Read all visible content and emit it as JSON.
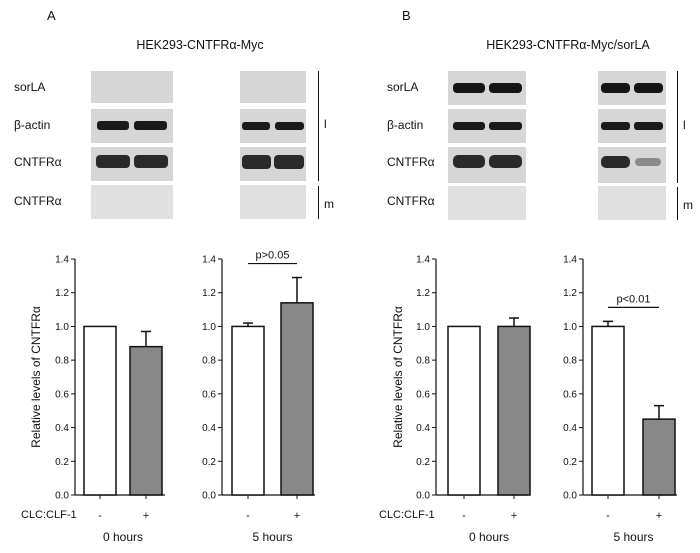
{
  "panels": [
    {
      "letter": "A",
      "cell_line": "HEK293-CNTFRα-Myc",
      "blot_labels": [
        "sorLA",
        "β-actin",
        "CNTFRα",
        "CNTFRα"
      ],
      "bracket_labels": [
        "l",
        "m"
      ]
    },
    {
      "letter": "B",
      "cell_line": "HEK293-CNTFRα-Myc/sorLA",
      "blot_labels": [
        "sorLA",
        "β-actin",
        "CNTFRα",
        "CNTFRα"
      ],
      "bracket_labels": [
        "l",
        "m"
      ]
    }
  ],
  "treatment_label": "CLC:CLF-1",
  "chart_data": [
    {
      "type": "bar",
      "panel": "A",
      "title": "0 hours",
      "ylabel": "Relative levels of CNTFRα",
      "categories": [
        "-",
        "+"
      ],
      "values": [
        1.0,
        0.88
      ],
      "errors": [
        0.0,
        0.09
      ],
      "fill": [
        "#ffffff",
        "#888888"
      ],
      "ylim": [
        0,
        1.4
      ],
      "yticks": [
        "0.0",
        "0.2",
        "0.4",
        "0.6",
        "0.8",
        "1.0",
        "1.2",
        "1.4"
      ],
      "annotation": ""
    },
    {
      "type": "bar",
      "panel": "A",
      "title": "5 hours",
      "ylabel": "",
      "categories": [
        "-",
        "+"
      ],
      "values": [
        1.0,
        1.14
      ],
      "errors": [
        0.02,
        0.15
      ],
      "fill": [
        "#ffffff",
        "#888888"
      ],
      "ylim": [
        0,
        1.4
      ],
      "yticks": [
        "0.0",
        "0.2",
        "0.4",
        "0.6",
        "0.8",
        "1.0",
        "1.2",
        "1.4"
      ],
      "annotation": "p>0.05"
    },
    {
      "type": "bar",
      "panel": "B",
      "title": "0 hours",
      "ylabel": "Relative levels of CNTFRα",
      "categories": [
        "-",
        "+"
      ],
      "values": [
        1.0,
        1.0
      ],
      "errors": [
        0.0,
        0.05
      ],
      "fill": [
        "#ffffff",
        "#888888"
      ],
      "ylim": [
        0,
        1.4
      ],
      "yticks": [
        "0.0",
        "0.2",
        "0.4",
        "0.6",
        "0.8",
        "1.0",
        "1.2",
        "1.4"
      ],
      "annotation": ""
    },
    {
      "type": "bar",
      "panel": "B",
      "title": "5 hours",
      "ylabel": "",
      "categories": [
        "-",
        "+"
      ],
      "values": [
        1.0,
        0.45
      ],
      "errors": [
        0.03,
        0.08
      ],
      "fill": [
        "#ffffff",
        "#888888"
      ],
      "ylim": [
        0,
        1.4
      ],
      "yticks": [
        "0.0",
        "0.2",
        "0.4",
        "0.6",
        "0.8",
        "1.0",
        "1.2",
        "1.4"
      ],
      "annotation": "p<0.01"
    }
  ]
}
